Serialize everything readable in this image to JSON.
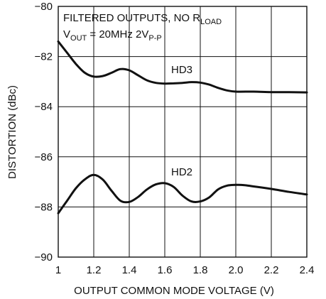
{
  "chart_data": {
    "type": "line",
    "title": "",
    "xlabel": "OUTPUT COMMON MODE VOLTAGE (V)",
    "ylabel": "DISTORTION (dBc)",
    "xlim": [
      1,
      2.4
    ],
    "ylim": [
      -90,
      -80
    ],
    "x_ticks": [
      "1",
      "1.2",
      "1.4",
      "1.6",
      "1.8",
      "2.0",
      "2.2",
      "2.4"
    ],
    "y_ticks": [
      "−80",
      "−82",
      "−84",
      "−86",
      "−88",
      "−90"
    ],
    "grid": true,
    "annotation": {
      "line1": "FILTERED OUTPUTS, NO R",
      "line1_sub": "LOAD",
      "line2_pre": "V",
      "line2_sub": "OUT",
      "line2_mid": " = 20MHz 2V",
      "line2_sub2": "P-P"
    },
    "series": [
      {
        "name": "HD3",
        "x": [
          1.0,
          1.05,
          1.1,
          1.15,
          1.2,
          1.25,
          1.3,
          1.35,
          1.4,
          1.45,
          1.5,
          1.55,
          1.6,
          1.65,
          1.7,
          1.75,
          1.8,
          1.85,
          1.9,
          1.95,
          2.0,
          2.1,
          2.2,
          2.3,
          2.4
        ],
        "y": [
          -81.4,
          -81.85,
          -82.3,
          -82.65,
          -82.8,
          -82.78,
          -82.65,
          -82.5,
          -82.55,
          -82.75,
          -82.95,
          -83.05,
          -83.08,
          -83.07,
          -83.05,
          -83.02,
          -83.04,
          -83.12,
          -83.25,
          -83.35,
          -83.4,
          -83.4,
          -83.42,
          -83.42,
          -83.43
        ]
      },
      {
        "name": "HD2",
        "x": [
          1.0,
          1.05,
          1.1,
          1.15,
          1.2,
          1.25,
          1.3,
          1.35,
          1.4,
          1.45,
          1.5,
          1.55,
          1.6,
          1.65,
          1.7,
          1.75,
          1.8,
          1.85,
          1.9,
          1.95,
          2.0,
          2.05,
          2.1,
          2.2,
          2.3,
          2.4
        ],
        "y": [
          -88.25,
          -87.75,
          -87.25,
          -86.9,
          -86.72,
          -86.9,
          -87.35,
          -87.75,
          -87.8,
          -87.6,
          -87.3,
          -87.1,
          -87.05,
          -87.2,
          -87.55,
          -87.78,
          -87.78,
          -87.62,
          -87.3,
          -87.15,
          -87.12,
          -87.13,
          -87.18,
          -87.28,
          -87.4,
          -87.5
        ]
      }
    ]
  }
}
